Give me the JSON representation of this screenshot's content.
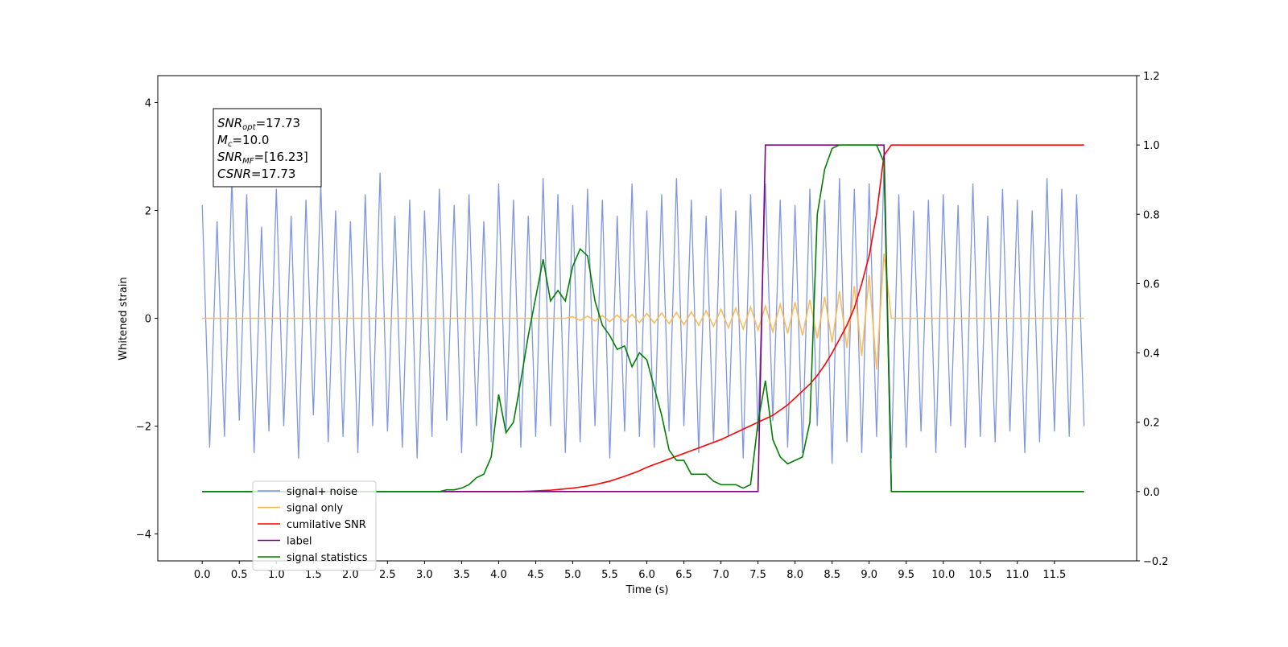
{
  "chart_data": {
    "type": "line",
    "xlabel": "Time (s)",
    "ylabel": "Whitened strain",
    "xlim": [
      -0.6,
      12.61
    ],
    "ylim": [
      -4.5,
      4.5
    ],
    "y2lim": [
      -0.2,
      1.2
    ],
    "xticks": [
      {
        "value": 0,
        "label": "0.0"
      },
      0.5,
      {
        "value": 1,
        "label": "1.0"
      },
      1.5,
      {
        "value": 2,
        "label": "2.0"
      },
      2.5,
      {
        "value": 3,
        "label": "3.0"
      },
      3.5,
      {
        "value": 4,
        "label": "4.0"
      },
      4.5,
      {
        "value": 5,
        "label": "5.0"
      },
      5.5,
      {
        "value": 6,
        "label": "6.0"
      },
      6.5,
      {
        "value": 7,
        "label": "7.0"
      },
      7.5,
      {
        "value": 8,
        "label": "8.0"
      },
      8.5,
      {
        "value": 9,
        "label": "9.0"
      },
      9.5,
      {
        "value": 10,
        "label": "10.0"
      },
      10.5,
      {
        "value": 11,
        "label": "11.0"
      },
      11.5
    ],
    "yticks": [
      {
        "value": -4,
        "label": "−4"
      },
      {
        "value": -2,
        "label": "−2"
      },
      0,
      2,
      4
    ],
    "y2ticks": [
      {
        "value": -0.2,
        "label": "−0.2"
      },
      {
        "value": 0,
        "label": "0.0"
      },
      0.2,
      0.4,
      0.6,
      0.8,
      {
        "value": 1,
        "label": "1.0"
      },
      1.2
    ],
    "legend_loc": "lower left",
    "annotation": [
      {
        "symbol": "SNR",
        "subscript": "opt",
        "text": "=17.73"
      },
      {
        "symbol": "M",
        "subscript": "c",
        "text": "=10.0"
      },
      {
        "symbol": "SNR",
        "subscript": "MF",
        "text": "=[16.23]"
      },
      {
        "symbol": "CSNR",
        "text": "=17.73"
      }
    ],
    "x": [
      0,
      0.1,
      0.2,
      0.3,
      0.4,
      0.5,
      0.6,
      0.7,
      0.8,
      0.9,
      1,
      1.1,
      1.2,
      1.3,
      1.4,
      1.5,
      1.6,
      1.7,
      1.8,
      1.9,
      2,
      2.1,
      2.2,
      2.3,
      2.4,
      2.5,
      2.6,
      2.7,
      2.8,
      2.9,
      3,
      3.1,
      3.2,
      3.3,
      3.4,
      3.5,
      3.6,
      3.7,
      3.8,
      3.9,
      4,
      4.1,
      4.2,
      4.3,
      4.4,
      4.5,
      4.6,
      4.7,
      4.8,
      4.9,
      5,
      5.1,
      5.2,
      5.3,
      5.4,
      5.5,
      5.6,
      5.7,
      5.8,
      5.9,
      6,
      6.1,
      6.2,
      6.3,
      6.4,
      6.5,
      6.6,
      6.7,
      6.8,
      6.9,
      7,
      7.1,
      7.2,
      7.3,
      7.4,
      7.5,
      7.6,
      7.7,
      7.8,
      7.9,
      8,
      8.1,
      8.2,
      8.3,
      8.4,
      8.5,
      8.6,
      8.7,
      8.8,
      8.9,
      9,
      9.1,
      9.2,
      9.3,
      9.4,
      9.5,
      9.6,
      9.7,
      9.8,
      9.9,
      10,
      10.1,
      10.2,
      10.3,
      10.4,
      10.5,
      10.6,
      10.7,
      10.8,
      10.9,
      11,
      11.1,
      11.2,
      11.3,
      11.4,
      11.5,
      11.6,
      11.7,
      11.8,
      11.9
    ],
    "series": [
      {
        "name": "signal+ noise",
        "color": "#7890e0",
        "values": [
          2.1,
          -2.4,
          1.8,
          -2.2,
          2.6,
          -1.9,
          2.3,
          -2.5,
          1.7,
          -2.1,
          2.4,
          -2.0,
          1.9,
          -2.6,
          2.2,
          -1.8,
          2.5,
          -2.3,
          2.0,
          -2.2,
          1.8,
          -2.5,
          2.3,
          -2.0,
          2.7,
          -2.1,
          1.9,
          -2.4,
          2.2,
          -2.6,
          2.0,
          -2.2,
          2.4,
          -1.9,
          2.1,
          -2.5,
          2.3,
          -2.0,
          1.8,
          -2.3,
          2.5,
          -2.1,
          2.2,
          -2.4,
          1.9,
          -2.2,
          2.6,
          -2.0,
          2.3,
          -2.5,
          2.1,
          -2.3,
          2.4,
          -2.0,
          2.2,
          -2.6,
          1.9,
          -2.1,
          2.5,
          -2.2,
          2.0,
          -2.4,
          2.3,
          -2.1,
          2.6,
          -2.0,
          2.2,
          -2.5,
          1.9,
          -2.3,
          2.4,
          -2.2,
          2.0,
          -2.6,
          2.3,
          -2.1,
          2.5,
          -1.9,
          2.2,
          -2.4,
          2.1,
          -2.5,
          2.4,
          -2.0,
          2.2,
          -2.7,
          2.6,
          -2.3,
          2.4,
          -2.5,
          2.5,
          -2.2,
          2.8,
          -2.6,
          2.3,
          -2.4,
          2.0,
          -2.1,
          2.2,
          -2.5,
          2.3,
          -2.0,
          2.1,
          -2.4,
          2.5,
          -2.2,
          1.9,
          -2.3,
          2.4,
          -2.1,
          2.2,
          -2.5,
          2.0,
          -2.3,
          2.6,
          -2.1,
          2.4,
          -2.2,
          2.3,
          -2.0
        ]
      },
      {
        "name": "signal only",
        "color": "#ffb74d",
        "values": [
          0,
          0,
          0,
          0,
          0,
          0,
          0,
          0,
          0,
          0,
          0,
          0,
          0,
          0,
          0,
          0,
          0,
          0,
          0,
          0,
          0,
          0,
          0,
          0,
          0,
          0,
          0,
          0,
          0,
          0,
          0,
          0,
          0,
          0,
          0,
          0,
          0,
          0,
          0,
          0,
          0,
          0,
          0,
          0,
          0,
          0,
          0,
          0,
          0,
          0,
          0.03,
          -0.04,
          0.04,
          -0.05,
          0.05,
          -0.06,
          0.06,
          -0.07,
          0.07,
          -0.08,
          0.09,
          -0.09,
          0.1,
          -0.1,
          0.11,
          -0.12,
          0.12,
          -0.13,
          0.14,
          -0.15,
          0.17,
          -0.18,
          0.19,
          -0.2,
          0.21,
          -0.22,
          0.23,
          -0.25,
          0.26,
          -0.28,
          0.3,
          -0.32,
          0.34,
          -0.37,
          0.4,
          -0.45,
          0.5,
          -0.55,
          0.6,
          -0.7,
          0.8,
          -0.95,
          1.2,
          0,
          0,
          0,
          0,
          0,
          0,
          0,
          0,
          0,
          0,
          0,
          0,
          0,
          0,
          0,
          0,
          0,
          0,
          0,
          0,
          0,
          0,
          0,
          0,
          0,
          0,
          0
        ]
      },
      {
        "name": "cumilative SNR",
        "color": "#ff0000",
        "axis": "y2",
        "values": [
          0,
          0,
          0,
          0,
          0,
          0,
          0,
          0,
          0,
          0,
          0,
          0,
          0,
          0,
          0,
          0,
          0,
          0,
          0,
          0,
          0,
          0,
          0,
          0,
          0,
          0,
          0,
          0,
          0,
          0,
          0,
          0,
          0,
          0,
          0,
          0,
          0,
          0,
          0,
          0,
          0,
          0,
          0,
          0,
          0.001,
          0.002,
          0.003,
          0.004,
          0.006,
          0.008,
          0.01,
          0.013,
          0.016,
          0.02,
          0.025,
          0.03,
          0.037,
          0.044,
          0.052,
          0.06,
          0.07,
          0.078,
          0.086,
          0.094,
          0.102,
          0.11,
          0.118,
          0.126,
          0.134,
          0.142,
          0.15,
          0.16,
          0.17,
          0.18,
          0.19,
          0.2,
          0.21,
          0.22,
          0.235,
          0.25,
          0.27,
          0.29,
          0.31,
          0.335,
          0.365,
          0.4,
          0.44,
          0.48,
          0.53,
          0.6,
          0.68,
          0.8,
          0.97,
          1,
          1,
          1,
          1,
          1,
          1,
          1,
          1,
          1,
          1,
          1,
          1,
          1,
          1,
          1,
          1,
          1,
          1,
          1,
          1,
          1,
          1,
          1,
          1,
          1,
          1,
          1
        ]
      },
      {
        "name": "label",
        "color": "#800080",
        "axis": "y2",
        "values": [
          0,
          0,
          0,
          0,
          0,
          0,
          0,
          0,
          0,
          0,
          0,
          0,
          0,
          0,
          0,
          0,
          0,
          0,
          0,
          0,
          0,
          0,
          0,
          0,
          0,
          0,
          0,
          0,
          0,
          0,
          0,
          0,
          0,
          0,
          0,
          0,
          0,
          0,
          0,
          0,
          0,
          0,
          0,
          0,
          0,
          0,
          0,
          0,
          0,
          0,
          0,
          0,
          0,
          0,
          0,
          0,
          0,
          0,
          0,
          0,
          0,
          0,
          0,
          0,
          0,
          0,
          0,
          0,
          0,
          0,
          0,
          0,
          0,
          0,
          0,
          0,
          1,
          1,
          1,
          1,
          1,
          1,
          1,
          1,
          1,
          1,
          1,
          1,
          1,
          1,
          1,
          1,
          1,
          0,
          0,
          0,
          0,
          0,
          0,
          0,
          0,
          0,
          0,
          0,
          0,
          0,
          0,
          0,
          0,
          0,
          0,
          0,
          0,
          0,
          0,
          0,
          0,
          0,
          0,
          0
        ]
      },
      {
        "name": "signal statistics",
        "color": "#008000",
        "axis": "y2",
        "values": [
          0,
          0,
          0,
          0,
          0,
          0,
          0,
          0,
          0,
          0,
          0,
          0,
          0,
          0,
          0,
          0,
          0,
          0,
          0,
          0,
          0,
          0,
          0,
          0,
          0,
          0,
          0,
          0,
          0,
          0,
          0,
          0,
          0,
          0.005,
          0.005,
          0.01,
          0.02,
          0.04,
          0.05,
          0.1,
          0.28,
          0.17,
          0.2,
          0.32,
          0.45,
          0.56,
          0.67,
          0.55,
          0.58,
          0.55,
          0.65,
          0.7,
          0.68,
          0.55,
          0.48,
          0.45,
          0.41,
          0.42,
          0.36,
          0.4,
          0.38,
          0.3,
          0.22,
          0.12,
          0.09,
          0.09,
          0.05,
          0.05,
          0.05,
          0.03,
          0.02,
          0.02,
          0.02,
          0.01,
          0.02,
          0.2,
          0.32,
          0.15,
          0.1,
          0.08,
          0.09,
          0.1,
          0.2,
          0.8,
          0.93,
          0.99,
          1,
          1,
          1,
          1,
          1,
          1,
          0.95,
          0,
          0,
          0,
          0,
          0,
          0,
          0,
          0,
          0,
          0,
          0,
          0,
          0,
          0,
          0,
          0,
          0,
          0,
          0,
          0,
          0,
          0,
          0,
          0,
          0,
          0,
          0
        ]
      }
    ]
  }
}
